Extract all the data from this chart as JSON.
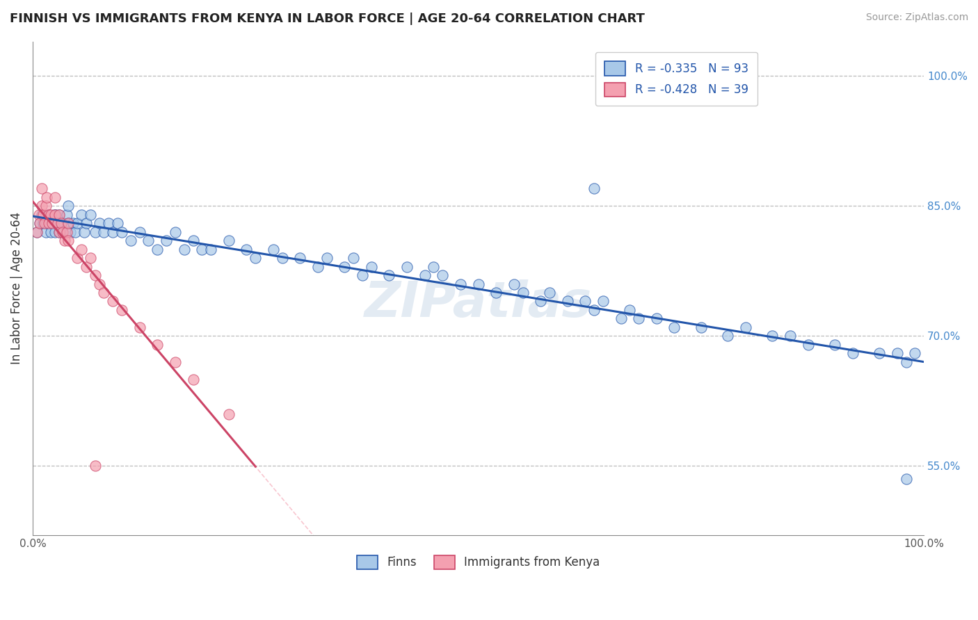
{
  "title": "FINNISH VS IMMIGRANTS FROM KENYA IN LABOR FORCE | AGE 20-64 CORRELATION CHART",
  "source_text": "Source: ZipAtlas.com",
  "ylabel": "In Labor Force | Age 20-64",
  "xlim": [
    0.0,
    1.0
  ],
  "ylim": [
    0.47,
    1.04
  ],
  "x_tick_labels": [
    "0.0%",
    "",
    "",
    "",
    "",
    "100.0%"
  ],
  "x_tick_vals": [
    0.0,
    0.2,
    0.4,
    0.6,
    0.8,
    1.0
  ],
  "y_tick_labels_right": [
    "55.0%",
    "70.0%",
    "85.0%",
    "100.0%"
  ],
  "y_tick_vals_right": [
    0.55,
    0.7,
    0.85,
    1.0
  ],
  "legend_r_blue": "R = -0.335",
  "legend_n_blue": "N = 93",
  "legend_r_pink": "R = -0.428",
  "legend_n_pink": "N = 39",
  "blue_scatter_color": "#A8C8E8",
  "blue_line_color": "#2255AA",
  "pink_scatter_color": "#F4A0B0",
  "pink_line_color": "#CC4466",
  "pink_dash_color": "#F4A0B0",
  "grid_color": "#BBBBBB",
  "background_color": "#FFFFFF",
  "watermark": "ZIPatlas",
  "legend_text_color": "#333333",
  "legend_r_color": "#2255AA",
  "right_axis_color": "#4488CC",
  "finns_x": [
    0.005,
    0.008,
    0.01,
    0.012,
    0.015,
    0.016,
    0.018,
    0.02,
    0.022,
    0.024,
    0.025,
    0.026,
    0.028,
    0.03,
    0.03,
    0.032,
    0.034,
    0.035,
    0.038,
    0.04,
    0.04,
    0.042,
    0.045,
    0.048,
    0.05,
    0.055,
    0.058,
    0.06,
    0.065,
    0.07,
    0.075,
    0.08,
    0.085,
    0.09,
    0.095,
    0.1,
    0.11,
    0.12,
    0.13,
    0.14,
    0.15,
    0.16,
    0.17,
    0.18,
    0.19,
    0.2,
    0.22,
    0.24,
    0.25,
    0.27,
    0.28,
    0.3,
    0.32,
    0.33,
    0.35,
    0.36,
    0.37,
    0.38,
    0.4,
    0.42,
    0.44,
    0.45,
    0.46,
    0.48,
    0.5,
    0.52,
    0.54,
    0.55,
    0.57,
    0.58,
    0.6,
    0.62,
    0.63,
    0.64,
    0.66,
    0.67,
    0.68,
    0.7,
    0.72,
    0.75,
    0.78,
    0.8,
    0.83,
    0.85,
    0.87,
    0.9,
    0.92,
    0.95,
    0.97,
    0.98,
    0.99,
    0.63,
    0.98
  ],
  "finns_y": [
    0.82,
    0.83,
    0.84,
    0.83,
    0.82,
    0.83,
    0.84,
    0.82,
    0.83,
    0.84,
    0.82,
    0.84,
    0.83,
    0.82,
    0.84,
    0.83,
    0.82,
    0.83,
    0.84,
    0.83,
    0.85,
    0.82,
    0.83,
    0.82,
    0.83,
    0.84,
    0.82,
    0.83,
    0.84,
    0.82,
    0.83,
    0.82,
    0.83,
    0.82,
    0.83,
    0.82,
    0.81,
    0.82,
    0.81,
    0.8,
    0.81,
    0.82,
    0.8,
    0.81,
    0.8,
    0.8,
    0.81,
    0.8,
    0.79,
    0.8,
    0.79,
    0.79,
    0.78,
    0.79,
    0.78,
    0.79,
    0.77,
    0.78,
    0.77,
    0.78,
    0.77,
    0.78,
    0.77,
    0.76,
    0.76,
    0.75,
    0.76,
    0.75,
    0.74,
    0.75,
    0.74,
    0.74,
    0.73,
    0.74,
    0.72,
    0.73,
    0.72,
    0.72,
    0.71,
    0.71,
    0.7,
    0.71,
    0.7,
    0.7,
    0.69,
    0.69,
    0.68,
    0.68,
    0.68,
    0.67,
    0.68,
    0.87,
    0.535
  ],
  "kenya_x": [
    0.005,
    0.007,
    0.008,
    0.01,
    0.01,
    0.012,
    0.013,
    0.015,
    0.016,
    0.018,
    0.018,
    0.02,
    0.022,
    0.025,
    0.025,
    0.028,
    0.03,
    0.03,
    0.032,
    0.034,
    0.036,
    0.038,
    0.04,
    0.04,
    0.05,
    0.055,
    0.06,
    0.065,
    0.07,
    0.075,
    0.08,
    0.09,
    0.1,
    0.12,
    0.14,
    0.16,
    0.18,
    0.22,
    0.07
  ],
  "kenya_y": [
    0.82,
    0.84,
    0.83,
    0.85,
    0.87,
    0.84,
    0.83,
    0.85,
    0.86,
    0.84,
    0.83,
    0.84,
    0.83,
    0.84,
    0.86,
    0.83,
    0.82,
    0.84,
    0.83,
    0.82,
    0.81,
    0.82,
    0.81,
    0.83,
    0.79,
    0.8,
    0.78,
    0.79,
    0.77,
    0.76,
    0.75,
    0.74,
    0.73,
    0.71,
    0.69,
    0.67,
    0.65,
    0.61,
    0.55
  ]
}
